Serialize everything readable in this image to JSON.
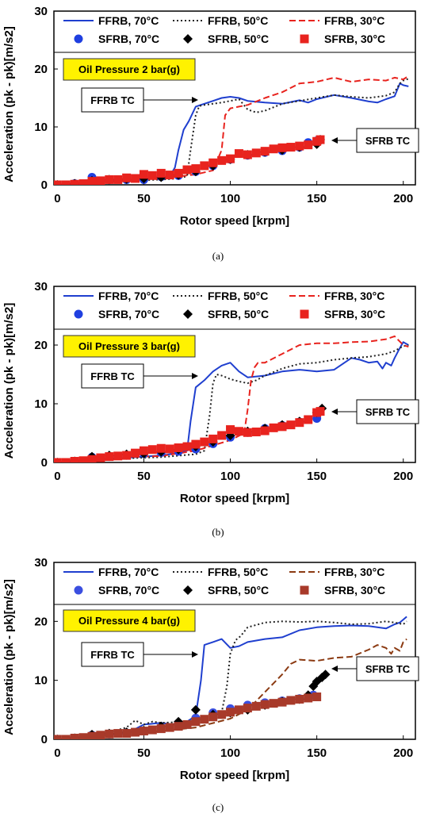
{
  "chart_data": [
    {
      "type": "line",
      "caption": "(a)",
      "xlabel": "Rotor speed  [krpm]",
      "ylabel": "Acceleration (pk - pk)[m/s2]",
      "xlim": [
        -2,
        207
      ],
      "ylim": [
        0,
        30
      ],
      "xticks": [
        0,
        50,
        100,
        150,
        200
      ],
      "yticks": [
        0,
        10,
        20,
        30
      ],
      "legend_position": "top",
      "oil_label": "Oil Pressure 2 bar(g)",
      "annotations": [
        {
          "text": "FFRB TC"
        },
        {
          "text": "SFRB TC"
        }
      ],
      "series": [
        {
          "name": "FFRB, 70°C",
          "style": "solid",
          "color": "#1f3fcf",
          "x": [
            0,
            20,
            40,
            60,
            65,
            68,
            70,
            73,
            76,
            80,
            85,
            90,
            95,
            100,
            105,
            110,
            120,
            130,
            140,
            145,
            150,
            160,
            170,
            180,
            185,
            190,
            195,
            198,
            200,
            203
          ],
          "y": [
            0,
            0.5,
            0.8,
            1.2,
            1.5,
            3,
            6,
            9.5,
            11,
            13.5,
            14,
            14.5,
            15,
            15.2,
            15,
            14.5,
            14.2,
            14,
            14.6,
            14.2,
            14.8,
            15.5,
            15,
            14.4,
            14.2,
            14.8,
            15.3,
            17.5,
            17.2,
            17
          ]
        },
        {
          "name": "FFRB, 50°C",
          "style": "dotted",
          "color": "#222222",
          "x": [
            0,
            20,
            40,
            60,
            70,
            75,
            77,
            80,
            82,
            85,
            90,
            95,
            100,
            105,
            110,
            115,
            120,
            130,
            140,
            150,
            160,
            170,
            180,
            190,
            195,
            198,
            200,
            203
          ],
          "y": [
            0,
            0.4,
            0.7,
            0.9,
            1.1,
            1.5,
            6,
            12,
            13.6,
            13.8,
            14,
            14.2,
            14.5,
            14.8,
            13,
            12.5,
            12.8,
            14,
            14.5,
            15,
            15.5,
            15.2,
            15,
            15.4,
            16,
            17.5,
            18,
            18.3
          ]
        },
        {
          "name": "FFRB, 30°C",
          "style": "dashed",
          "color": "#e8231e",
          "x": [
            0,
            20,
            40,
            60,
            80,
            90,
            95,
            97,
            100,
            105,
            110,
            120,
            130,
            140,
            150,
            160,
            170,
            180,
            190,
            195,
            200,
            203
          ],
          "y": [
            0,
            0.6,
            0.9,
            1.1,
            1.8,
            2.5,
            6,
            12,
            13.2,
            13.5,
            13.8,
            15,
            16,
            17.5,
            17.8,
            18.5,
            17.8,
            18.2,
            18,
            18.5,
            18.2,
            18.8
          ]
        },
        {
          "name": "SFRB, 70°C",
          "marker": "circle",
          "color": "#1f3fe0",
          "x": [
            0,
            10,
            20,
            30,
            40,
            50,
            60,
            70,
            80,
            90,
            100,
            110,
            120,
            130,
            140,
            145,
            150
          ],
          "y": [
            0,
            0.2,
            1.3,
            0.9,
            0.9,
            0.9,
            1.4,
            1.6,
            2.3,
            3.3,
            4.4,
            5.1,
            5.6,
            5.9,
            6.5,
            7.3,
            7.6
          ]
        },
        {
          "name": "SFRB, 50°C",
          "marker": "diamond",
          "color": "#000000",
          "x": [
            0,
            10,
            20,
            30,
            40,
            50,
            60,
            70,
            80,
            90,
            100,
            110,
            120,
            130,
            140,
            150,
            152
          ],
          "y": [
            0,
            0.2,
            0.7,
            0.9,
            1,
            1.1,
            1.3,
            1.7,
            2.3,
            3.3,
            4.4,
            5.2,
            5.7,
            6,
            6.5,
            7,
            7.8
          ]
        },
        {
          "name": "SFRB, 30°C",
          "marker": "square",
          "color": "#e8231e",
          "x": [
            0,
            5,
            10,
            15,
            20,
            25,
            30,
            35,
            40,
            45,
            50,
            55,
            60,
            65,
            70,
            75,
            80,
            85,
            90,
            95,
            100,
            105,
            110,
            115,
            120,
            125,
            130,
            135,
            140,
            145,
            150,
            152
          ],
          "y": [
            0,
            0,
            0.1,
            0.2,
            0.6,
            0.7,
            0.9,
            0.9,
            1.2,
            1.1,
            1.8,
            1.6,
            2,
            1.7,
            2,
            2.6,
            2.8,
            3.3,
            3.8,
            4.2,
            4.5,
            5.4,
            5.2,
            5.5,
            5.8,
            6.2,
            6.4,
            6.5,
            6.7,
            6.9,
            7.5,
            7.8
          ]
        }
      ]
    },
    {
      "type": "line",
      "caption": "(b)",
      "xlabel": "Rotor speed  [krpm]",
      "ylabel": "Acceleration (pk - pk)[m/s2]",
      "xlim": [
        -2,
        207
      ],
      "ylim": [
        0,
        30
      ],
      "xticks": [
        0,
        50,
        100,
        150,
        200
      ],
      "yticks": [
        0,
        10,
        20,
        30
      ],
      "legend_position": "top",
      "oil_label": "Oil Pressure 3 bar(g)",
      "annotations": [
        {
          "text": "FFRB TC"
        },
        {
          "text": "SFRB TC"
        }
      ],
      "series": [
        {
          "name": "FFRB, 70°C",
          "style": "solid",
          "color": "#1f3fcf",
          "x": [
            0,
            20,
            40,
            60,
            70,
            75,
            77,
            80,
            85,
            90,
            95,
            100,
            105,
            110,
            120,
            130,
            140,
            150,
            160,
            170,
            175,
            180,
            185,
            188,
            190,
            193,
            195,
            198,
            200,
            203
          ],
          "y": [
            0,
            0.5,
            0.8,
            1.2,
            1.6,
            2,
            7,
            12.8,
            14,
            15.5,
            16.5,
            17,
            15.5,
            14.5,
            14.8,
            15.5,
            15.8,
            15.5,
            15.8,
            17.8,
            17.5,
            17,
            17.2,
            16,
            17,
            16.5,
            17.8,
            19.5,
            20.5,
            20
          ]
        },
        {
          "name": "FFRB, 50°C",
          "style": "dotted",
          "color": "#222222",
          "x": [
            0,
            20,
            40,
            60,
            80,
            85,
            88,
            90,
            92,
            95,
            100,
            105,
            110,
            115,
            120,
            130,
            140,
            150,
            160,
            170,
            180,
            190,
            195,
            198,
            200,
            203
          ],
          "y": [
            0,
            0.4,
            0.7,
            0.9,
            1.4,
            2,
            8,
            13.5,
            15,
            14.8,
            14.2,
            13.8,
            13.5,
            14,
            14.8,
            16,
            16.8,
            17,
            17.5,
            17.8,
            18,
            18.5,
            19,
            19.5,
            19.8,
            20
          ]
        },
        {
          "name": "FFRB, 30°C",
          "style": "dashed",
          "color": "#e8231e",
          "x": [
            0,
            20,
            40,
            60,
            80,
            100,
            108,
            110,
            112,
            114,
            116,
            120,
            130,
            140,
            150,
            160,
            170,
            180,
            190,
            195,
            200,
            203
          ],
          "y": [
            0,
            0.6,
            0.9,
            1.1,
            2,
            3.8,
            5,
            9,
            14,
            16.2,
            17,
            17,
            18.5,
            20,
            20.3,
            20.3,
            20.5,
            20.6,
            21,
            21.5,
            20,
            19.7
          ]
        },
        {
          "name": "SFRB, 70°C",
          "marker": "circle",
          "color": "#1f3fe0",
          "x": [
            0,
            10,
            20,
            30,
            40,
            50,
            60,
            70,
            80,
            90,
            100,
            110,
            120,
            130,
            140,
            150
          ],
          "y": [
            0,
            0.2,
            0.9,
            1,
            1.2,
            1.5,
            1.7,
            1.9,
            2.3,
            3.2,
            4.3,
            5.1,
            5.8,
            6.3,
            6.9,
            7.5
          ]
        },
        {
          "name": "SFRB, 50°C",
          "marker": "diamond",
          "color": "#000000",
          "x": [
            0,
            10,
            20,
            30,
            40,
            50,
            60,
            70,
            80,
            90,
            100,
            110,
            120,
            130,
            140,
            150,
            153
          ],
          "y": [
            0,
            0.2,
            1,
            1.2,
            1.4,
            1.5,
            1.8,
            2.2,
            2.7,
            3.5,
            4.6,
            5.3,
            5.8,
            6.4,
            7,
            8.5,
            9.2
          ]
        },
        {
          "name": "SFRB, 30°C",
          "marker": "square",
          "color": "#e8231e",
          "x": [
            0,
            5,
            10,
            15,
            20,
            25,
            30,
            35,
            40,
            45,
            50,
            55,
            60,
            65,
            70,
            75,
            80,
            85,
            90,
            95,
            100,
            105,
            110,
            115,
            120,
            125,
            130,
            135,
            140,
            145,
            150,
            152
          ],
          "y": [
            0,
            0,
            0.2,
            0.3,
            0.5,
            0.8,
            1,
            1.1,
            1.2,
            1.6,
            2,
            2.2,
            2.4,
            2.3,
            2.5,
            2.7,
            3.1,
            3.5,
            4,
            4.6,
            5.6,
            5.3,
            5.1,
            5.2,
            5.4,
            5.9,
            6.1,
            6.4,
            6.8,
            7.3,
            8.5,
            8.7
          ]
        }
      ]
    },
    {
      "type": "line",
      "caption": "(c)",
      "xlabel": "Rotor speed  [krpm]",
      "ylabel": "Acceleration (pk - pk)[m/s2]",
      "xlim": [
        -2,
        207
      ],
      "ylim": [
        0,
        30
      ],
      "xticks": [
        0,
        50,
        100,
        150,
        200
      ],
      "yticks": [
        0,
        10,
        20,
        30
      ],
      "legend_position": "top",
      "oil_label": "Oil Pressure 4 bar(g)",
      "annotations": [
        {
          "text": "FFRB TC"
        },
        {
          "text": "SFRB TC"
        }
      ],
      "series": [
        {
          "name": "FFRB, 70°C",
          "style": "solid",
          "color": "#1f3fcf",
          "x": [
            0,
            20,
            40,
            50,
            60,
            70,
            75,
            80,
            83,
            85,
            87,
            90,
            95,
            100,
            105,
            110,
            120,
            130,
            140,
            150,
            160,
            170,
            180,
            190,
            195,
            198,
            200,
            202
          ],
          "y": [
            0,
            0.5,
            1,
            2.5,
            2.8,
            2.4,
            3,
            4,
            10,
            16,
            16.2,
            16.5,
            17,
            15.5,
            15.8,
            16.5,
            17,
            17.3,
            18.5,
            19,
            19.2,
            19.3,
            19.2,
            18.8,
            19.5,
            19.8,
            20.3,
            20.8
          ]
        },
        {
          "name": "FFRB, 50°C",
          "style": "dotted",
          "color": "#222222",
          "x": [
            0,
            20,
            40,
            45,
            50,
            55,
            60,
            70,
            80,
            90,
            95,
            98,
            100,
            103,
            106,
            110,
            120,
            130,
            140,
            150,
            160,
            170,
            180,
            190,
            195,
            200,
            202
          ],
          "y": [
            0,
            0.4,
            2,
            3.2,
            2.5,
            3,
            2.8,
            2.9,
            3.2,
            3.8,
            4.5,
            9,
            14.5,
            16.8,
            17.5,
            19,
            19.8,
            20,
            19.9,
            20,
            19.8,
            19.5,
            19.6,
            20,
            19.8,
            19.5,
            20
          ]
        },
        {
          "name": "FFRB, 30°C",
          "style": "dashed",
          "color": "#8b3a12",
          "x": [
            0,
            20,
            40,
            60,
            80,
            100,
            110,
            120,
            130,
            135,
            140,
            150,
            160,
            170,
            180,
            185,
            190,
            193,
            195,
            198,
            200,
            202
          ],
          "y": [
            0,
            0.6,
            1,
            1.4,
            2,
            3.5,
            5,
            8,
            11,
            12.8,
            13.5,
            13.3,
            13.8,
            14,
            15.2,
            16,
            15.5,
            14.5,
            15.5,
            15,
            16.5,
            17
          ]
        },
        {
          "name": "SFRB, 70°C",
          "marker": "circle",
          "color": "#3b4fe0",
          "x": [
            0,
            10,
            20,
            30,
            40,
            50,
            60,
            70,
            80,
            90,
            100,
            110,
            120,
            130,
            140,
            148
          ],
          "y": [
            0,
            0.2,
            0.7,
            0.9,
            1.1,
            1.4,
            1.9,
            2.7,
            3.6,
            4.5,
            5.2,
            5.8,
            6.2,
            6.5,
            6.9,
            7.5
          ]
        },
        {
          "name": "SFRB, 50°C",
          "marker": "diamond",
          "color": "#000000",
          "x": [
            0,
            10,
            20,
            30,
            40,
            50,
            60,
            70,
            80,
            90,
            100,
            110,
            120,
            130,
            140,
            145,
            148,
            150,
            153,
            155
          ],
          "y": [
            0,
            0.2,
            0.8,
            1,
            1.2,
            1.5,
            2.2,
            3,
            5,
            4.2,
            4.5,
            5,
            5.8,
            6.4,
            6.8,
            7.5,
            9,
            9.8,
            10.5,
            11
          ]
        },
        {
          "name": "SFRB, 30°C",
          "marker": "square",
          "color": "#a83a2a",
          "x": [
            0,
            5,
            10,
            15,
            20,
            25,
            30,
            35,
            40,
            45,
            50,
            55,
            60,
            65,
            70,
            75,
            80,
            85,
            90,
            95,
            100,
            105,
            110,
            115,
            120,
            125,
            130,
            135,
            140,
            145,
            150
          ],
          "y": [
            0,
            0,
            0.2,
            0.3,
            0.5,
            0.7,
            0.9,
            1,
            1,
            1.2,
            1.4,
            1.6,
            1.8,
            2,
            2.2,
            2.5,
            3,
            3.4,
            3.8,
            4.2,
            4.6,
            5,
            5.3,
            5.6,
            5.9,
            6.1,
            6.3,
            6.6,
            6.8,
            7,
            7.2
          ]
        }
      ]
    }
  ]
}
